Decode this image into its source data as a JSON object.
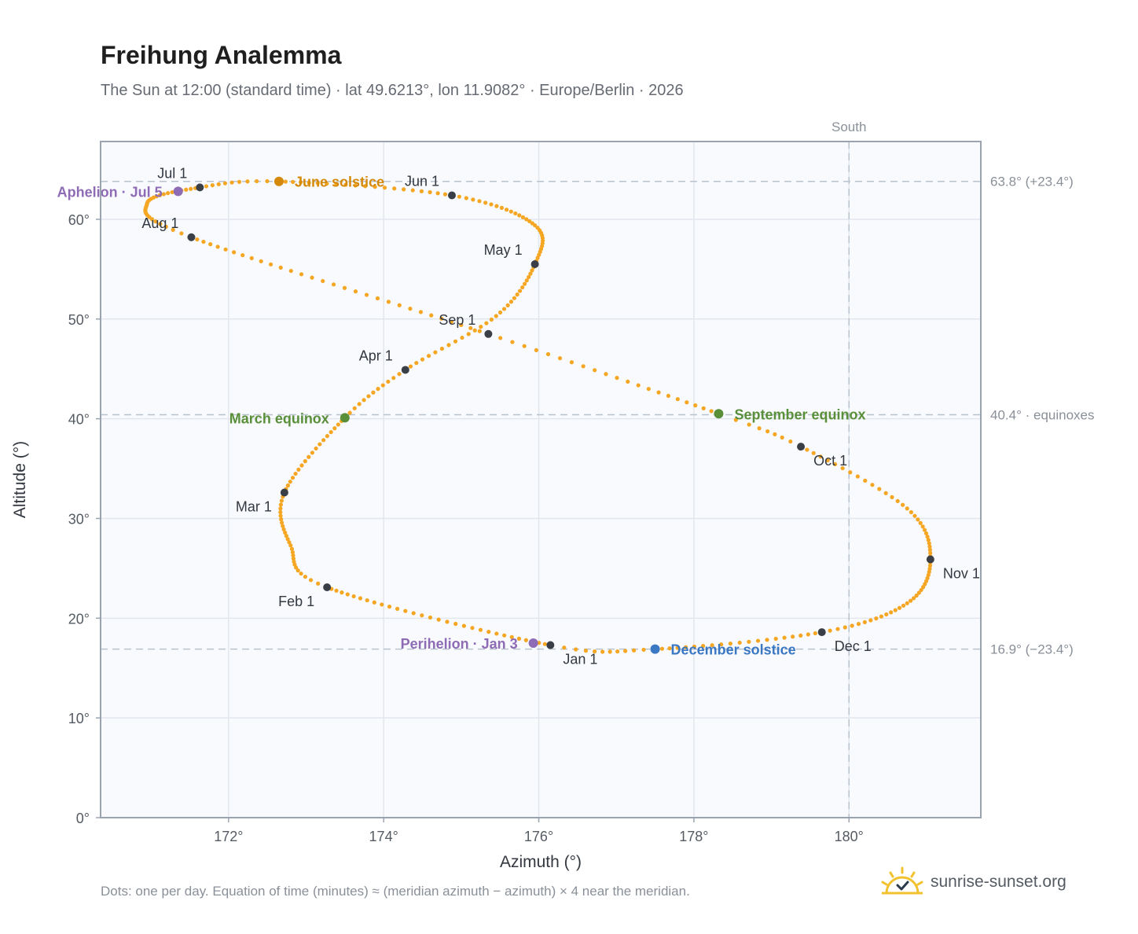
{
  "header": {
    "title": "Freihung Analemma",
    "subtitle": "The Sun at 12:00 (standard time) · lat 49.6213°, lon 11.9082° · Europe/Berlin · 2026"
  },
  "footer": {
    "note": "Dots: one per day. Equation of time (minutes) ≈ (meridian azimuth − azimuth) × 4 near the meridian.",
    "brand": "sunrise-sunset.org"
  },
  "colors": {
    "path": "#f5a623",
    "month_marker": "#3a3f47",
    "solstice_june": "#d4890a",
    "solstice_december": "#3b78c3",
    "equinox": "#5a8f3a",
    "apsis": "#8e6bb5",
    "plot_bg": "#f8fafd",
    "grid": "#e2e7ee",
    "ref_line": "#b9c3ce"
  },
  "chart_data": {
    "type": "scatter",
    "xlabel": "Azimuth (°)",
    "ylabel": "Altitude (°)",
    "xlim": [
      170.35,
      181.7
    ],
    "ylim": [
      0,
      67.8
    ],
    "x_ticks": [
      172,
      174,
      176,
      178,
      180
    ],
    "x_tick_labels": [
      "172°",
      "174°",
      "176°",
      "178°",
      "180°"
    ],
    "y_ticks": [
      0,
      10,
      20,
      30,
      40,
      50,
      60
    ],
    "y_tick_labels": [
      "0°",
      "10°",
      "20°",
      "30°",
      "40°",
      "50°",
      "60°"
    ],
    "grid": true,
    "south_line": {
      "azimuth": 180,
      "label": "South"
    },
    "reference_lines": [
      {
        "altitude": 63.8,
        "label": "63.8° (+23.4°)"
      },
      {
        "altitude": 40.4,
        "label": "40.4° · equinoxes"
      },
      {
        "altitude": 16.9,
        "label": "16.9° (−23.4°)"
      }
    ],
    "path_anchors": [
      {
        "doy": 1,
        "az": 176.15,
        "alt": 17.3
      },
      {
        "doy": 32,
        "az": 173.27,
        "alt": 23.1
      },
      {
        "doy": 45,
        "az": 172.8,
        "alt": 27.3
      },
      {
        "doy": 60,
        "az": 172.72,
        "alt": 32.6
      },
      {
        "doy": 79,
        "az": 173.5,
        "alt": 40.1
      },
      {
        "doy": 91,
        "az": 174.28,
        "alt": 44.9
      },
      {
        "doy": 106,
        "az": 175.45,
        "alt": 50.3
      },
      {
        "doy": 121,
        "az": 175.95,
        "alt": 55.5
      },
      {
        "doy": 135,
        "az": 175.95,
        "alt": 59.4
      },
      {
        "doy": 152,
        "az": 174.88,
        "alt": 62.4
      },
      {
        "doy": 172,
        "az": 172.65,
        "alt": 63.8
      },
      {
        "doy": 182,
        "az": 171.63,
        "alt": 63.2
      },
      {
        "doy": 197,
        "az": 170.95,
        "alt": 61.6
      },
      {
        "doy": 213,
        "az": 171.52,
        "alt": 58.2
      },
      {
        "doy": 244,
        "az": 175.35,
        "alt": 48.5
      },
      {
        "doy": 266,
        "az": 178.32,
        "alt": 40.5
      },
      {
        "doy": 274,
        "az": 179.38,
        "alt": 37.2
      },
      {
        "doy": 290,
        "az": 180.75,
        "alt": 31.0
      },
      {
        "doy": 305,
        "az": 181.05,
        "alt": 25.9
      },
      {
        "doy": 320,
        "az": 180.75,
        "alt": 21.5
      },
      {
        "doy": 335,
        "az": 179.65,
        "alt": 18.6
      },
      {
        "doy": 355,
        "az": 177.5,
        "alt": 16.9
      },
      {
        "doy": 366,
        "az": 176.15,
        "alt": 17.3
      }
    ],
    "month_markers": [
      {
        "label": "Jan 1",
        "az": 176.15,
        "alt": 17.3,
        "pos": "below-right"
      },
      {
        "label": "Feb 1",
        "az": 173.27,
        "alt": 23.1,
        "pos": "below-left"
      },
      {
        "label": "Mar 1",
        "az": 172.72,
        "alt": 32.6,
        "pos": "below-left"
      },
      {
        "label": "Apr 1",
        "az": 174.28,
        "alt": 44.9,
        "pos": "above-left"
      },
      {
        "label": "May 1",
        "az": 175.95,
        "alt": 55.5,
        "pos": "above-left"
      },
      {
        "label": "Jun 1",
        "az": 174.88,
        "alt": 62.4,
        "pos": "above-left"
      },
      {
        "label": "Jul 1",
        "az": 171.63,
        "alt": 63.2,
        "pos": "above-left"
      },
      {
        "label": "Aug 1",
        "az": 171.52,
        "alt": 58.2,
        "pos": "above-left"
      },
      {
        "label": "Sep 1",
        "az": 175.35,
        "alt": 48.5,
        "pos": "above-left"
      },
      {
        "label": "Oct 1",
        "az": 179.38,
        "alt": 37.2,
        "pos": "below-right"
      },
      {
        "label": "Nov 1",
        "az": 181.05,
        "alt": 25.9,
        "pos": "below-right"
      },
      {
        "label": "Dec 1",
        "az": 179.65,
        "alt": 18.6,
        "pos": "below-right"
      }
    ],
    "special_points": [
      {
        "label": "June solstice",
        "az": 172.65,
        "alt": 63.8,
        "color": "#d4890a",
        "pos": "right"
      },
      {
        "label": "December solstice",
        "az": 177.5,
        "alt": 16.9,
        "color": "#3b78c3",
        "pos": "right"
      },
      {
        "label": "March equinox",
        "az": 173.5,
        "alt": 40.1,
        "color": "#5a8f3a",
        "pos": "left"
      },
      {
        "label": "September equinox",
        "az": 178.32,
        "alt": 40.5,
        "color": "#5a8f3a",
        "pos": "right"
      },
      {
        "label": "Aphelion · Jul 5",
        "az": 171.35,
        "alt": 62.8,
        "color": "#8e6bb5",
        "pos": "left"
      },
      {
        "label": "Perihelion · Jan 3",
        "az": 175.93,
        "alt": 17.5,
        "color": "#8e6bb5",
        "pos": "left"
      }
    ]
  }
}
